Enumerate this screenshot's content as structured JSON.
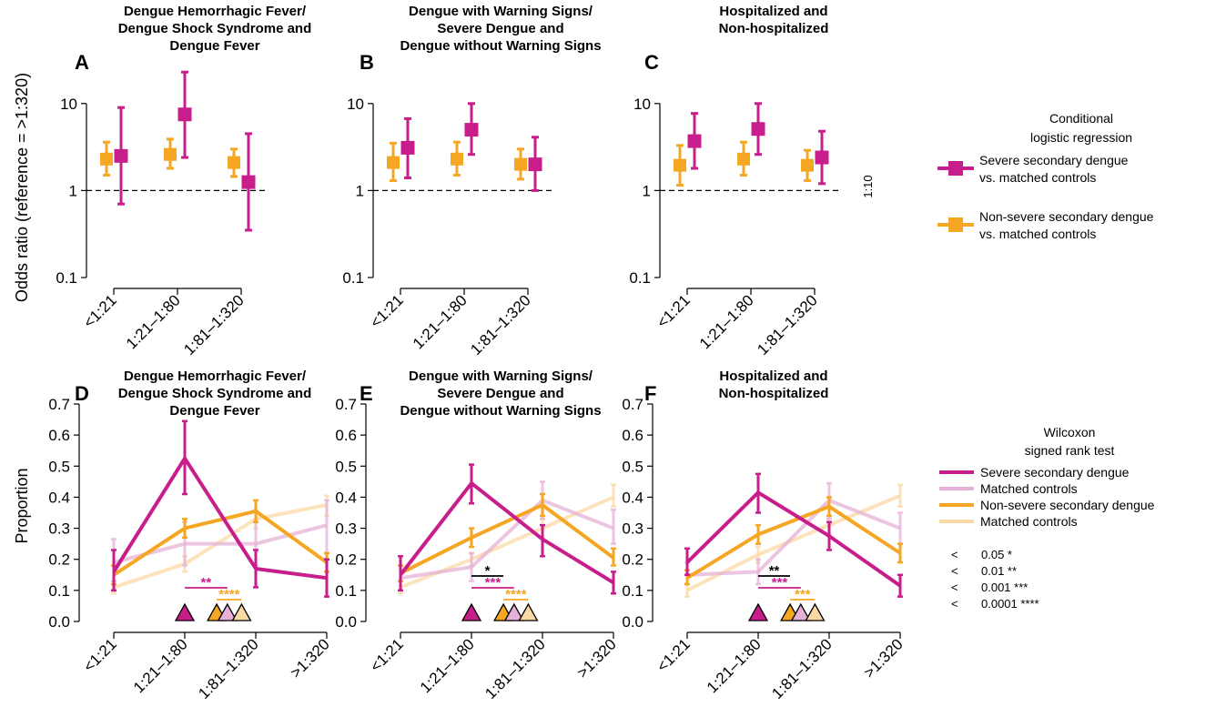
{
  "colors": {
    "severe": "#c81e8c",
    "nonsevere": "#f5a623",
    "severe_matched": "#e6b1d6",
    "nonsevere_matched": "#fbd9a5",
    "text": "#000000"
  },
  "axis_labels": {
    "top_y": "Odds ratio (reference = >1:320)",
    "bottom_y": "Proportion",
    "ref_note": "1:10"
  },
  "legend_top": {
    "title_line1": "Conditional",
    "title_line2": "logistic regression",
    "items": [
      {
        "line1": "Severe secondary dengue",
        "line2": "vs. matched controls",
        "color_key": "severe"
      },
      {
        "line1": "Non-severe secondary dengue",
        "line2": "vs. matched controls",
        "color_key": "nonsevere"
      }
    ]
  },
  "legend_bottom": {
    "title_line1": "Wilcoxon",
    "title_line2": "signed rank test",
    "items": [
      {
        "label": "Severe secondary dengue",
        "color_key": "severe"
      },
      {
        "label": "Matched controls",
        "color_key": "severe_matched"
      },
      {
        "label": "Non-severe secondary dengue",
        "color_key": "nonsevere"
      },
      {
        "label": "Matched controls",
        "color_key": "nonsevere_matched"
      }
    ],
    "significance": [
      {
        "op": "<",
        "text": "0.05 *"
      },
      {
        "op": "<",
        "text": "0.01 **"
      },
      {
        "op": "<",
        "text": "0.001 ***"
      },
      {
        "op": "<",
        "text": "0.0001 ****"
      }
    ]
  },
  "chart_data": [
    {
      "panel": "A",
      "type": "scatter",
      "title": [
        "Dengue Hemorrhagic Fever/",
        "Dengue Shock Syndrome and",
        "Dengue Fever"
      ],
      "categories": [
        "<1:21",
        "1:21–1:80",
        "1:81–1:320"
      ],
      "yscale": "log",
      "ylim": [
        0.1,
        20
      ],
      "yticks": [
        "0.1",
        "1",
        "10"
      ],
      "reference_line": 1,
      "series": [
        {
          "name": "Severe secondary dengue vs. matched controls",
          "color_key": "severe",
          "values": [
            2.5,
            7.5,
            1.25
          ],
          "lower": [
            0.7,
            2.4,
            0.35
          ],
          "upper": [
            9.0,
            23.0,
            4.5
          ]
        },
        {
          "name": "Non-severe secondary dengue vs. matched controls",
          "color_key": "nonsevere",
          "values": [
            2.3,
            2.6,
            2.1
          ],
          "lower": [
            1.5,
            1.8,
            1.45
          ],
          "upper": [
            3.6,
            3.9,
            3.0
          ]
        }
      ]
    },
    {
      "panel": "B",
      "type": "scatter",
      "title": [
        "Dengue with Warning Signs/",
        "Severe Dengue and",
        "Dengue without Warning Signs"
      ],
      "categories": [
        "<1:21",
        "1:21–1:80",
        "1:81–1:320"
      ],
      "yscale": "log",
      "ylim": [
        0.1,
        20
      ],
      "yticks": [
        "0.1",
        "1",
        "10"
      ],
      "reference_line": 1,
      "series": [
        {
          "name": "Severe secondary dengue vs. matched controls",
          "color_key": "severe",
          "values": [
            3.1,
            5.0,
            2.0
          ],
          "lower": [
            1.4,
            2.6,
            1.0
          ],
          "upper": [
            6.7,
            10.0,
            4.1
          ]
        },
        {
          "name": "Non-severe secondary dengue vs. matched controls",
          "color_key": "nonsevere",
          "values": [
            2.1,
            2.3,
            2.0
          ],
          "lower": [
            1.3,
            1.5,
            1.35
          ],
          "upper": [
            3.5,
            3.6,
            3.0
          ]
        }
      ]
    },
    {
      "panel": "C",
      "type": "scatter",
      "title": [
        "Hospitalized and",
        "Non-hospitalized"
      ],
      "categories": [
        "<1:21",
        "1:21–1:80",
        "1:81–1:320"
      ],
      "yscale": "log",
      "ylim": [
        0.1,
        20
      ],
      "yticks": [
        "0.1",
        "1",
        "10"
      ],
      "reference_line": 1,
      "series": [
        {
          "name": "Severe secondary dengue vs. matched controls",
          "color_key": "severe",
          "values": [
            3.7,
            5.1,
            2.4
          ],
          "lower": [
            1.8,
            2.6,
            1.2
          ],
          "upper": [
            7.7,
            10.0,
            4.8
          ]
        },
        {
          "name": "Non-severe secondary dengue vs. matched controls",
          "color_key": "nonsevere",
          "values": [
            1.95,
            2.3,
            1.95
          ],
          "lower": [
            1.15,
            1.5,
            1.3
          ],
          "upper": [
            3.3,
            3.6,
            2.9
          ]
        }
      ]
    },
    {
      "panel": "D",
      "type": "line",
      "title": [
        "Dengue Hemorrhagic Fever/",
        "Dengue Shock Syndrome and",
        "Dengue Fever"
      ],
      "categories": [
        "<1:21",
        "1:21–1:80",
        "1:81–1:320",
        ">1:320"
      ],
      "ylim": [
        0,
        0.7
      ],
      "yticks": [
        "0.0",
        "0.1",
        "0.2",
        "0.3",
        "0.4",
        "0.5",
        "0.6",
        "0.7"
      ],
      "series": [
        {
          "name": "Severe secondary dengue",
          "color_key": "severe",
          "values": [
            0.16,
            0.525,
            0.17,
            0.14
          ],
          "lower": [
            0.1,
            0.41,
            0.11,
            0.08
          ],
          "upper": [
            0.23,
            0.645,
            0.23,
            0.2
          ]
        },
        {
          "name": "Matched controls",
          "color_key": "severe_matched",
          "values": [
            0.19,
            0.25,
            0.25,
            0.31
          ],
          "lower": [
            0.13,
            0.18,
            0.18,
            0.22
          ],
          "upper": [
            0.265,
            0.32,
            0.32,
            0.39
          ]
        },
        {
          "name": "Non-severe secondary dengue",
          "color_key": "nonsevere",
          "values": [
            0.15,
            0.3,
            0.355,
            0.19
          ],
          "lower": [
            0.12,
            0.27,
            0.32,
            0.16
          ],
          "upper": [
            0.18,
            0.33,
            0.39,
            0.22
          ]
        },
        {
          "name": "Matched controls",
          "color_key": "nonsevere_matched",
          "values": [
            0.11,
            0.185,
            0.33,
            0.375
          ],
          "lower": [
            0.09,
            0.16,
            0.3,
            0.34
          ],
          "upper": [
            0.13,
            0.21,
            0.36,
            0.405
          ]
        }
      ],
      "medians": [
        1.0,
        1.45,
        1.6,
        1.8
      ],
      "brackets": [
        {
          "from": 1.0,
          "to": 1.6,
          "color_key": "severe",
          "stars": "**",
          "level": 1
        },
        {
          "from": 1.45,
          "to": 1.8,
          "color_key": "nonsevere",
          "stars": "****",
          "level": 0
        }
      ]
    },
    {
      "panel": "E",
      "type": "line",
      "title": [
        "Dengue with Warning Signs/",
        "Severe Dengue and",
        "Dengue without Warning Signs"
      ],
      "categories": [
        "<1:21",
        "1:21–1:80",
        "1:81–1:320",
        ">1:320"
      ],
      "ylim": [
        0,
        0.7
      ],
      "yticks": [
        "0.0",
        "0.1",
        "0.2",
        "0.3",
        "0.4",
        "0.5",
        "0.6",
        "0.7"
      ],
      "series": [
        {
          "name": "Severe secondary dengue",
          "color_key": "severe",
          "values": [
            0.15,
            0.445,
            0.265,
            0.125
          ],
          "lower": [
            0.1,
            0.38,
            0.21,
            0.09
          ],
          "upper": [
            0.21,
            0.505,
            0.31,
            0.16
          ]
        },
        {
          "name": "Matched controls",
          "color_key": "severe_matched",
          "values": [
            0.14,
            0.175,
            0.39,
            0.3
          ],
          "lower": [
            0.1,
            0.13,
            0.33,
            0.25
          ],
          "upper": [
            0.18,
            0.22,
            0.45,
            0.36
          ]
        },
        {
          "name": "Non-severe secondary dengue",
          "color_key": "nonsevere",
          "values": [
            0.155,
            0.27,
            0.375,
            0.205
          ],
          "lower": [
            0.13,
            0.24,
            0.34,
            0.18
          ],
          "upper": [
            0.18,
            0.3,
            0.41,
            0.235
          ]
        },
        {
          "name": "Matched controls",
          "color_key": "nonsevere_matched",
          "values": [
            0.11,
            0.2,
            0.3,
            0.4
          ],
          "lower": [
            0.09,
            0.18,
            0.27,
            0.37
          ],
          "upper": [
            0.13,
            0.22,
            0.33,
            0.44
          ]
        }
      ],
      "medians": [
        1.0,
        1.45,
        1.6,
        1.8
      ],
      "brackets": [
        {
          "from": 1.0,
          "to": 1.45,
          "color_key": "text",
          "stars": "*",
          "level": 2
        },
        {
          "from": 1.0,
          "to": 1.6,
          "color_key": "severe",
          "stars": "***",
          "level": 1
        },
        {
          "from": 1.45,
          "to": 1.8,
          "color_key": "nonsevere",
          "stars": "****",
          "level": 0
        }
      ]
    },
    {
      "panel": "F",
      "type": "line",
      "title": [
        "Hospitalized and",
        "Non-hospitalized"
      ],
      "categories": [
        "<1:21",
        "1:21–1:80",
        "1:81–1:320",
        ">1:320"
      ],
      "ylim": [
        0,
        0.7
      ],
      "yticks": [
        "0.0",
        "0.1",
        "0.2",
        "0.3",
        "0.4",
        "0.5",
        "0.6",
        "0.7"
      ],
      "series": [
        {
          "name": "Severe secondary dengue",
          "color_key": "severe",
          "values": [
            0.19,
            0.415,
            0.275,
            0.115
          ],
          "lower": [
            0.15,
            0.35,
            0.23,
            0.08
          ],
          "upper": [
            0.235,
            0.475,
            0.32,
            0.15
          ]
        },
        {
          "name": "Matched controls",
          "color_key": "severe_matched",
          "values": [
            0.15,
            0.16,
            0.39,
            0.3
          ],
          "lower": [
            0.12,
            0.12,
            0.33,
            0.25
          ],
          "upper": [
            0.19,
            0.2,
            0.445,
            0.35
          ]
        },
        {
          "name": "Non-severe secondary dengue",
          "color_key": "nonsevere",
          "values": [
            0.14,
            0.28,
            0.37,
            0.22
          ],
          "lower": [
            0.12,
            0.25,
            0.34,
            0.19
          ],
          "upper": [
            0.165,
            0.31,
            0.4,
            0.25
          ]
        },
        {
          "name": "Matched controls",
          "color_key": "nonsevere_matched",
          "values": [
            0.1,
            0.215,
            0.31,
            0.405
          ],
          "lower": [
            0.08,
            0.19,
            0.28,
            0.37
          ],
          "upper": [
            0.12,
            0.24,
            0.34,
            0.44
          ]
        }
      ],
      "medians": [
        1.0,
        1.45,
        1.6,
        1.8
      ],
      "brackets": [
        {
          "from": 1.0,
          "to": 1.45,
          "color_key": "text",
          "stars": "**",
          "level": 2
        },
        {
          "from": 1.0,
          "to": 1.6,
          "color_key": "severe",
          "stars": "***",
          "level": 1
        },
        {
          "from": 1.45,
          "to": 1.8,
          "color_key": "nonsevere",
          "stars": "***",
          "level": 0
        }
      ]
    }
  ]
}
